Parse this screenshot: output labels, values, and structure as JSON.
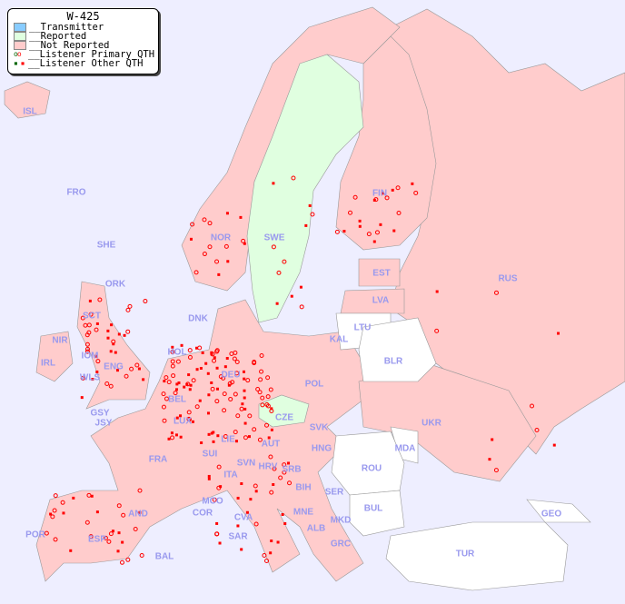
{
  "legend": {
    "title": "W-425",
    "items": [
      {
        "label": "__Transmitter",
        "color": "#88ccff"
      },
      {
        "label": "__Reported",
        "color": "#e0ffe0"
      },
      {
        "label": "__Not Reported",
        "color": "#ffcccc"
      },
      {
        "label": "__Listener Primary QTH",
        "marker": "circle"
      },
      {
        "label": "__Listener Other QTH",
        "marker": "square"
      }
    ]
  },
  "colors": {
    "sea": "#eeeeff",
    "not_reported": "#ffcccc",
    "reported": "#e0ffe0",
    "no_data": "#ffffff",
    "label": "#9999ee",
    "marker": "#ff0000"
  },
  "countries": {
    "reported": [
      "SWE",
      "CZE"
    ],
    "no_data": [
      "LTU",
      "BLR",
      "MDA",
      "ROU",
      "BUL",
      "TUR",
      "GEO"
    ],
    "labels": [
      "ISL",
      "FRO",
      "SHE",
      "ORK",
      "NOR",
      "SWE",
      "FIN",
      "EST",
      "RUS",
      "LVA",
      "LTU",
      "DNK",
      "KAL",
      "BLR",
      "HOL",
      "IRL",
      "WLS",
      "IOM",
      "ENG",
      "NIR",
      "SCT",
      "DEU",
      "POL",
      "BEL",
      "LUX",
      "GSY",
      "JSY",
      "CZE",
      "SVK",
      "UKR",
      "FRA",
      "SUI",
      "LIE",
      "AUT",
      "HNG",
      "MDA",
      "SVN",
      "HRV",
      "ITA",
      "ROU",
      "BIH",
      "SRB",
      "SER",
      "BUL",
      "MCO",
      "COR",
      "CVA",
      "MNE",
      "AND",
      "ALB",
      "MKD",
      "GEO",
      "POR",
      "ESP",
      "BAL",
      "SAR",
      "GRC",
      "TUR"
    ]
  }
}
